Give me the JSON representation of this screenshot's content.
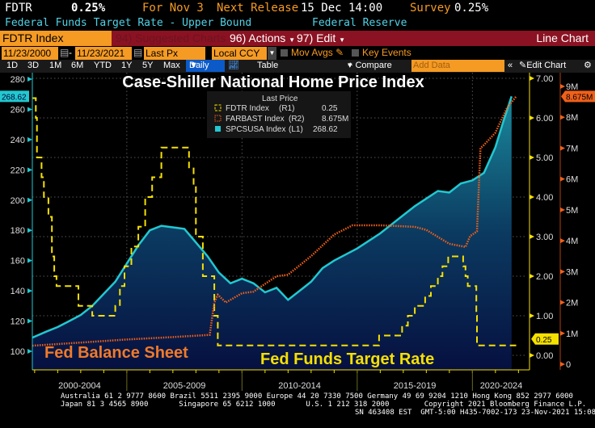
{
  "header": {
    "ticker": "FDTR",
    "value": "0.25%",
    "for": "For Nov 3",
    "next_release_label": "Next Release",
    "next_release": "15 Dec 14:00",
    "survey_label": "Survey",
    "survey": "0.25%",
    "description": "Federal Funds Target Rate - Upper Bound",
    "source": "Federal Reserve"
  },
  "toolbar": {
    "security": "FDTR Index",
    "suggested": "94) Suggested Charts",
    "actions": "96) Actions",
    "edit": "97) Edit",
    "chart_type": "Line Chart"
  },
  "controls": {
    "start_date": "11/23/2000",
    "end_date": "11/23/2021",
    "field": "Last Px",
    "currency": "Local CCY",
    "mov_avgs": "Mov Avgs",
    "key_events": "Key Events"
  },
  "periods": {
    "items": [
      "1D",
      "3D",
      "1M",
      "6M",
      "YTD",
      "1Y",
      "5Y",
      "Max"
    ],
    "frequency": "Daily",
    "table": "Table",
    "compare": "+ Compare",
    "add_data_placeholder": "Add Data",
    "edit_chart": "Edit Chart"
  },
  "colors": {
    "case_shiller": "#22c8d0",
    "fdtr": "#f5e000",
    "farbast": "#f0601a",
    "toolbar": "#8b1222",
    "input": "#f59a23",
    "frequency_active": "#0b5ac8"
  },
  "chart_data": {
    "type": "line",
    "title": "Case-Shiller National Home Price Index",
    "annotations": [
      "Fed Balance Sheet",
      "Fed Funds Target Rate"
    ],
    "legend": {
      "header": "Last Price",
      "position": "top-center",
      "entries": [
        {
          "name": "FDTR Index",
          "axis": "(R1)",
          "last": "0.25"
        },
        {
          "name": "FARBAST Index",
          "axis": "(R2)",
          "last": "8.675M"
        },
        {
          "name": "SPCSUSA Index",
          "axis": "(L1)",
          "last": "268.62"
        }
      ]
    },
    "x_ticks": [
      "2000-2004",
      "2005-2009",
      "2010-2014",
      "2015-2019",
      "2020-2024"
    ],
    "xlim": [
      2000.9,
      2021.9
    ],
    "axes": {
      "L1": {
        "ylim": [
          100,
          280
        ],
        "ticks": [
          "100",
          "120",
          "140",
          "160",
          "180",
          "200",
          "220",
          "240",
          "260",
          "280"
        ],
        "last_label": "268.62"
      },
      "R1": {
        "ylim": [
          0,
          7
        ],
        "ticks": [
          "0.00",
          "1.00",
          "2.00",
          "3.00",
          "4.00",
          "5.00",
          "6.00",
          "7.00"
        ],
        "last_label": "0.25"
      },
      "R2": {
        "ylim": [
          0,
          9
        ],
        "ticks": [
          "0",
          "1M",
          "2M",
          "3M",
          "4M",
          "5M",
          "6M",
          "7M",
          "8M",
          "9M"
        ],
        "last_label": "8.675M"
      }
    },
    "grid": true,
    "series": [
      {
        "name": "SPCSUSA Index",
        "axis": "L1",
        "style": "area",
        "points": [
          [
            2000.9,
            109
          ],
          [
            2001.5,
            113
          ],
          [
            2002,
            116
          ],
          [
            2002.5,
            120
          ],
          [
            2003,
            124
          ],
          [
            2003.5,
            130
          ],
          [
            2004,
            138
          ],
          [
            2004.5,
            146
          ],
          [
            2005,
            158
          ],
          [
            2005.5,
            170
          ],
          [
            2006,
            180
          ],
          [
            2006.5,
            183
          ],
          [
            2007,
            182
          ],
          [
            2007.5,
            181
          ],
          [
            2008,
            172
          ],
          [
            2008.5,
            163
          ],
          [
            2009,
            152
          ],
          [
            2009.5,
            145
          ],
          [
            2010,
            148
          ],
          [
            2010.5,
            145
          ],
          [
            2011,
            139
          ],
          [
            2011.5,
            142
          ],
          [
            2012,
            134
          ],
          [
            2012.5,
            140
          ],
          [
            2013,
            146
          ],
          [
            2013.5,
            155
          ],
          [
            2014,
            160
          ],
          [
            2014.5,
            164
          ],
          [
            2015,
            168
          ],
          [
            2015.5,
            173
          ],
          [
            2016,
            178
          ],
          [
            2016.5,
            184
          ],
          [
            2017,
            190
          ],
          [
            2017.5,
            196
          ],
          [
            2018,
            201
          ],
          [
            2018.5,
            206
          ],
          [
            2019,
            205
          ],
          [
            2019.5,
            211
          ],
          [
            2020,
            213
          ],
          [
            2020.5,
            218
          ],
          [
            2021,
            235
          ],
          [
            2021.3,
            250
          ],
          [
            2021.7,
            268.62
          ]
        ]
      },
      {
        "name": "FDTR Index",
        "axis": "R1",
        "style": "step-dashed",
        "points": [
          [
            2000.9,
            6.5
          ],
          [
            2001.05,
            6.0
          ],
          [
            2001.1,
            5.0
          ],
          [
            2001.3,
            4.5
          ],
          [
            2001.4,
            4.0
          ],
          [
            2001.6,
            3.5
          ],
          [
            2001.75,
            2.5
          ],
          [
            2001.85,
            2.0
          ],
          [
            2001.95,
            1.75
          ],
          [
            2002.9,
            1.25
          ],
          [
            2003.5,
            1.0
          ],
          [
            2004.5,
            1.25
          ],
          [
            2004.7,
            1.75
          ],
          [
            2004.9,
            2.25
          ],
          [
            2005.2,
            2.75
          ],
          [
            2005.5,
            3.25
          ],
          [
            2005.8,
            4.0
          ],
          [
            2006.1,
            4.5
          ],
          [
            2006.5,
            5.25
          ],
          [
            2007.7,
            4.75
          ],
          [
            2007.9,
            4.25
          ],
          [
            2008.0,
            3.0
          ],
          [
            2008.3,
            2.0
          ],
          [
            2008.8,
            1.0
          ],
          [
            2008.95,
            0.25
          ],
          [
            2015.95,
            0.5
          ],
          [
            2016.95,
            0.75
          ],
          [
            2017.2,
            1.0
          ],
          [
            2017.5,
            1.25
          ],
          [
            2017.95,
            1.5
          ],
          [
            2018.2,
            1.75
          ],
          [
            2018.5,
            2.0
          ],
          [
            2018.7,
            2.25
          ],
          [
            2018.95,
            2.5
          ],
          [
            2019.6,
            2.25
          ],
          [
            2019.7,
            2.0
          ],
          [
            2019.8,
            1.75
          ],
          [
            2020.17,
            1.0
          ],
          [
            2020.2,
            0.25
          ],
          [
            2021.9,
            0.25
          ]
        ]
      },
      {
        "name": "FARBAST Index",
        "axis": "R2",
        "style": "dotted",
        "points": [
          [
            2000.9,
            0.6
          ],
          [
            2003,
            0.7
          ],
          [
            2005,
            0.8
          ],
          [
            2007,
            0.88
          ],
          [
            2008.6,
            0.95
          ],
          [
            2008.8,
            2.0
          ],
          [
            2008.95,
            2.25
          ],
          [
            2009.3,
            2.0
          ],
          [
            2010,
            2.3
          ],
          [
            2010.5,
            2.35
          ],
          [
            2011,
            2.6
          ],
          [
            2011.5,
            2.85
          ],
          [
            2012,
            2.9
          ],
          [
            2013,
            3.5
          ],
          [
            2014,
            4.2
          ],
          [
            2014.8,
            4.5
          ],
          [
            2016,
            4.5
          ],
          [
            2017.5,
            4.45
          ],
          [
            2018,
            4.35
          ],
          [
            2019,
            3.9
          ],
          [
            2019.7,
            3.8
          ],
          [
            2019.9,
            4.15
          ],
          [
            2020.2,
            4.3
          ],
          [
            2020.35,
            7.0
          ],
          [
            2020.5,
            7.1
          ],
          [
            2021,
            7.5
          ],
          [
            2021.5,
            8.3
          ],
          [
            2021.9,
            8.675
          ]
        ]
      }
    ]
  },
  "footer": {
    "line1": "Australia 61 2 9777 8600 Brazil 5511 2395 9000 Europe 44 20 7330 7500 Germany 49 69 9204 1210 Hong Kong 852 2977 6000",
    "line2": "Japan 81 3 4565 8900       Singapore 65 6212 1000       U.S. 1 212 318 2000        Copyright 2021 Bloomberg Finance L.P.",
    "line3": "SN 463408 EST  GMT-5:00 H435-7002-173 23-Nov-2021 15:08:38"
  }
}
